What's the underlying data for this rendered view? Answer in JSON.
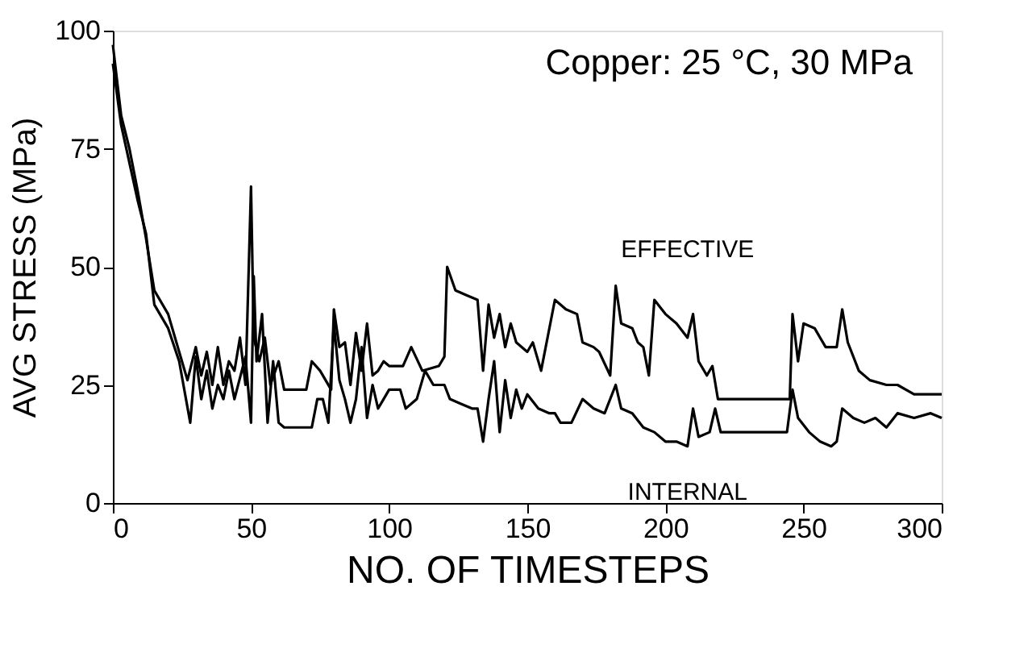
{
  "chart_data": {
    "type": "line",
    "xlabel": "NO. OF TIMESTEPS",
    "ylabel": "AVG STRESS (MPa)",
    "xlim": [
      0,
      300
    ],
    "xticks": [
      0,
      50,
      100,
      150,
      200,
      250,
      300
    ],
    "ylim": [
      0,
      100
    ],
    "yticks": [
      0,
      25,
      50,
      75,
      100
    ],
    "grid": false,
    "legend": false,
    "marker": "none",
    "line_style": "solid",
    "annotations": [
      "Copper: 25 °C, 30 MPa"
    ],
    "series": [
      {
        "name": "EFFECTIVE",
        "color": "#000000",
        "x": [
          0,
          3,
          6,
          9,
          12,
          15,
          20,
          24,
          27,
          30,
          32,
          34,
          36,
          38,
          40,
          42,
          44,
          46,
          48,
          50,
          51,
          53,
          55,
          57,
          60,
          62,
          70,
          72,
          75,
          79,
          80,
          82,
          84,
          86,
          88,
          90,
          92,
          94,
          96,
          98,
          100,
          105,
          108,
          112,
          118,
          120,
          121,
          124,
          128,
          132,
          134,
          136,
          138,
          140,
          142,
          144,
          146,
          150,
          152,
          155,
          160,
          164,
          168,
          170,
          174,
          176,
          180,
          182,
          184,
          188,
          190,
          192,
          194,
          196,
          200,
          204,
          208,
          210,
          212,
          215,
          217,
          219,
          235,
          245,
          246,
          248,
          250,
          254,
          258,
          262,
          264,
          266,
          270,
          274,
          280,
          284,
          290,
          300
        ],
        "values": [
          97,
          82,
          75,
          66,
          56,
          45,
          40,
          32,
          26,
          33,
          27,
          32,
          25,
          33,
          25,
          30,
          28,
          35,
          25,
          67,
          35,
          30,
          35,
          25,
          30,
          24,
          24,
          30,
          28,
          24,
          41,
          33,
          34,
          25,
          36,
          28,
          38,
          27,
          28,
          30,
          29,
          29,
          33,
          28,
          29,
          31,
          50,
          45,
          44,
          43,
          28,
          42,
          35,
          40,
          33,
          38,
          34,
          32,
          34,
          28,
          43,
          41,
          40,
          34,
          33,
          32,
          27,
          46,
          38,
          37,
          34,
          33,
          27,
          43,
          40,
          38,
          35,
          40,
          30,
          27,
          29,
          22,
          22,
          22,
          40,
          30,
          38,
          37,
          33,
          33,
          41,
          34,
          28,
          26,
          25,
          25,
          23,
          23
        ]
      },
      {
        "name": "INTERNAL",
        "color": "#000000",
        "x": [
          0,
          3,
          6,
          9,
          12,
          15,
          20,
          24,
          28,
          30,
          32,
          34,
          36,
          38,
          40,
          42,
          44,
          48,
          50,
          51,
          52,
          54,
          56,
          58,
          60,
          62,
          64,
          68,
          72,
          74,
          76,
          78,
          80,
          82,
          84,
          86,
          88,
          90,
          92,
          94,
          96,
          98,
          100,
          104,
          106,
          110,
          113,
          116,
          120,
          122,
          126,
          130,
          132,
          134,
          136,
          138,
          140,
          142,
          144,
          146,
          148,
          150,
          154,
          158,
          160,
          162,
          166,
          170,
          174,
          178,
          182,
          184,
          188,
          192,
          196,
          200,
          204,
          208,
          210,
          212,
          216,
          218,
          220,
          222,
          244,
          246,
          248,
          252,
          256,
          260,
          262,
          264,
          268,
          272,
          276,
          280,
          284,
          290,
          296,
          300
        ],
        "values": [
          93,
          80,
          72,
          64,
          57,
          42,
          37,
          30,
          17,
          31,
          22,
          28,
          20,
          25,
          22,
          28,
          22,
          31,
          17,
          48,
          30,
          40,
          17,
          30,
          17,
          16,
          16,
          16,
          16,
          22,
          22,
          17,
          38,
          26,
          22,
          17,
          22,
          33,
          18,
          25,
          20,
          22,
          24,
          24,
          20,
          22,
          28,
          25,
          25,
          22,
          21,
          20,
          20,
          13,
          22,
          30,
          15,
          26,
          18,
          24,
          20,
          23,
          20,
          19,
          19,
          17,
          17,
          22,
          20,
          19,
          25,
          20,
          19,
          16,
          15,
          13,
          13,
          12,
          20,
          14,
          15,
          20,
          15,
          15,
          15,
          24,
          18,
          15,
          13,
          12,
          13,
          20,
          18,
          17,
          18,
          16,
          19,
          18,
          19,
          18
        ]
      }
    ]
  }
}
